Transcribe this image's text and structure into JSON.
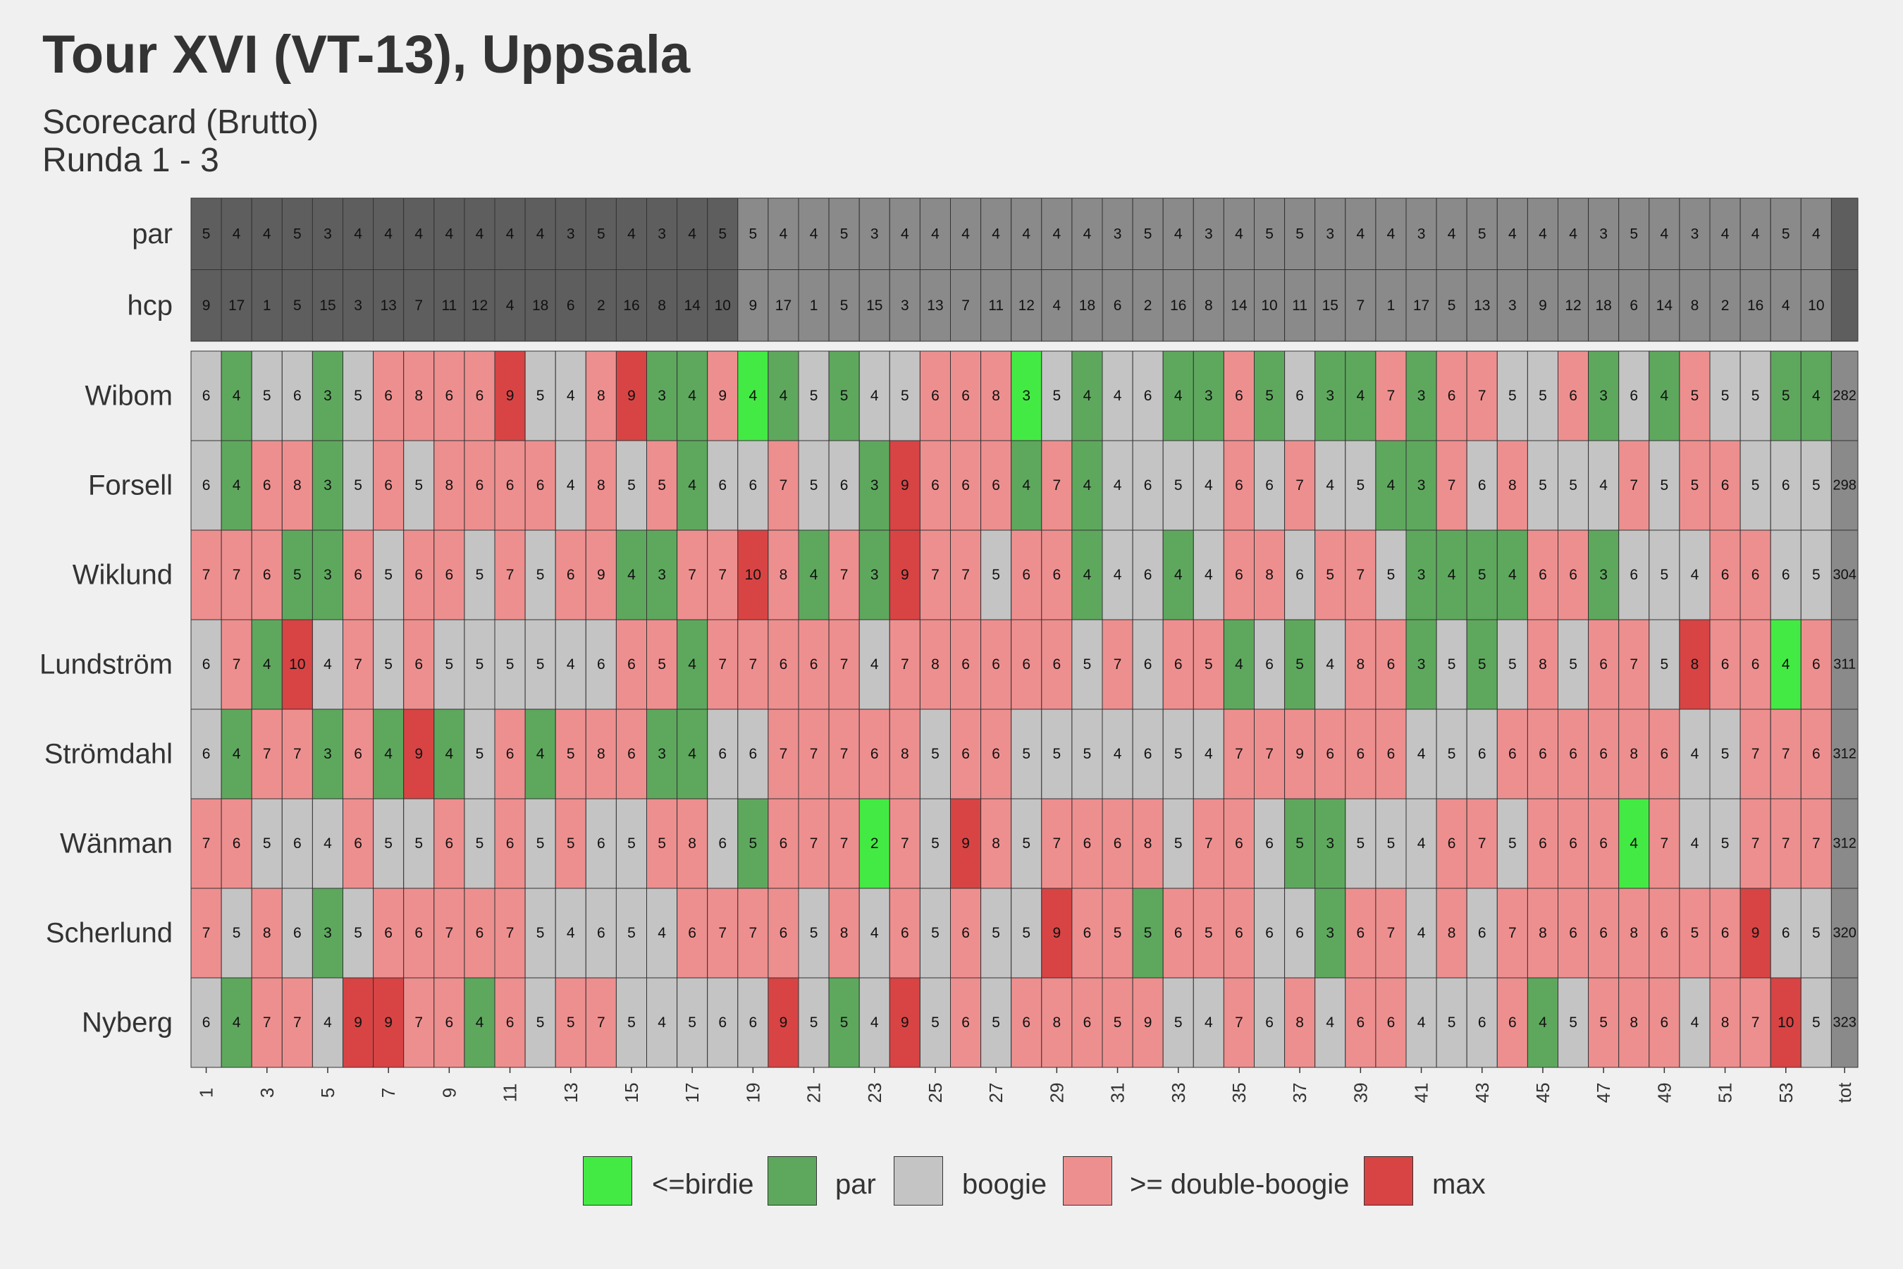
{
  "title": "Tour XVI (VT-13), Uppsala",
  "subtitle_line1": "Scorecard (Brutto)",
  "subtitle_line2": "Runda 1 - 3",
  "colors": {
    "birdie": "#44ea44",
    "par": "#5ea85e",
    "boogie": "#c4c4c4",
    "double": "#ee8f8f",
    "max": "#d84444",
    "header_dark": "#5e5e5e",
    "header_light": "#8a8a8a",
    "total": "#8a8a8a"
  },
  "legend": [
    {
      "key": "birdie",
      "label": "<=birdie"
    },
    {
      "key": "par",
      "label": "par"
    },
    {
      "key": "boogie",
      "label": "boogie"
    },
    {
      "key": "double",
      "label": ">= double-boogie"
    },
    {
      "key": "max",
      "label": "max"
    }
  ],
  "chart_data": {
    "type": "heatmap",
    "holes": [
      1,
      2,
      3,
      4,
      5,
      6,
      7,
      8,
      9,
      10,
      11,
      12,
      13,
      14,
      15,
      16,
      17,
      18,
      19,
      20,
      21,
      22,
      23,
      24,
      25,
      26,
      27,
      28,
      29,
      30,
      31,
      32,
      33,
      34,
      35,
      36,
      37,
      38,
      39,
      40,
      41,
      42,
      43,
      44,
      45,
      46,
      47,
      48,
      49,
      50,
      51,
      52,
      53,
      54
    ],
    "x_tick_labels": [
      "1",
      "3",
      "5",
      "7",
      "9",
      "11",
      "13",
      "15",
      "17",
      "19",
      "21",
      "23",
      "25",
      "27",
      "29",
      "31",
      "33",
      "35",
      "37",
      "39",
      "41",
      "43",
      "45",
      "47",
      "49",
      "51",
      "53",
      "tot"
    ],
    "header_rows": [
      {
        "label": "par",
        "values": [
          5,
          4,
          4,
          5,
          3,
          4,
          4,
          4,
          4,
          4,
          4,
          4,
          3,
          5,
          4,
          3,
          4,
          5,
          5,
          4,
          4,
          5,
          3,
          4,
          4,
          4,
          4,
          4,
          4,
          4,
          3,
          5,
          4,
          3,
          4,
          5,
          5,
          3,
          4,
          4,
          3,
          4,
          5,
          4,
          4,
          4,
          3,
          5,
          4,
          3,
          4,
          4,
          5,
          4
        ]
      },
      {
        "label": "hcp",
        "values": [
          9,
          17,
          1,
          5,
          15,
          3,
          13,
          7,
          11,
          12,
          4,
          18,
          6,
          2,
          16,
          8,
          14,
          10,
          9,
          17,
          1,
          5,
          15,
          3,
          13,
          7,
          11,
          12,
          4,
          18,
          6,
          2,
          16,
          8,
          14,
          10,
          11,
          15,
          7,
          1,
          17,
          5,
          13,
          3,
          9,
          12,
          18,
          6,
          14,
          8,
          2,
          16,
          4,
          10
        ]
      }
    ],
    "players": [
      {
        "name": "Wibom",
        "total": 282,
        "scores": [
          6,
          4,
          5,
          6,
          3,
          5,
          6,
          8,
          6,
          6,
          9,
          5,
          4,
          8,
          9,
          3,
          4,
          9,
          4,
          4,
          5,
          5,
          4,
          5,
          6,
          6,
          8,
          3,
          5,
          4,
          4,
          6,
          4,
          3,
          6,
          5,
          6,
          3,
          4,
          7,
          3,
          6,
          7,
          5,
          5,
          6,
          3,
          6,
          4,
          5,
          5,
          5,
          5,
          4
        ],
        "cats": [
          2,
          1,
          2,
          2,
          1,
          2,
          3,
          3,
          3,
          3,
          4,
          2,
          2,
          3,
          4,
          1,
          1,
          3,
          0,
          1,
          2,
          1,
          2,
          2,
          3,
          3,
          3,
          0,
          2,
          1,
          2,
          2,
          1,
          1,
          3,
          1,
          2,
          1,
          1,
          3,
          1,
          3,
          3,
          2,
          2,
          3,
          1,
          2,
          1,
          3,
          2,
          2,
          1,
          1
        ]
      },
      {
        "name": "Forsell",
        "total": 298,
        "scores": [
          6,
          4,
          6,
          8,
          3,
          5,
          6,
          5,
          8,
          6,
          6,
          6,
          4,
          8,
          5,
          5,
          4,
          6,
          6,
          7,
          5,
          6,
          3,
          9,
          6,
          6,
          6,
          4,
          7,
          4,
          4,
          6,
          5,
          4,
          6,
          6,
          7,
          4,
          5,
          4,
          3,
          7,
          6,
          8,
          5,
          5,
          4,
          7,
          5,
          5,
          6,
          5,
          6,
          5
        ],
        "cats": [
          2,
          1,
          3,
          3,
          1,
          2,
          3,
          2,
          3,
          3,
          3,
          3,
          2,
          3,
          2,
          3,
          1,
          2,
          2,
          3,
          2,
          2,
          1,
          4,
          3,
          3,
          3,
          1,
          3,
          1,
          2,
          2,
          2,
          2,
          3,
          2,
          3,
          2,
          2,
          1,
          1,
          3,
          2,
          3,
          2,
          2,
          2,
          3,
          2,
          3,
          3,
          2,
          2,
          2
        ]
      },
      {
        "name": "Wiklund",
        "total": 304,
        "scores": [
          7,
          7,
          6,
          5,
          3,
          6,
          5,
          6,
          6,
          5,
          7,
          5,
          6,
          9,
          4,
          3,
          7,
          7,
          10,
          8,
          4,
          7,
          3,
          9,
          7,
          7,
          5,
          6,
          6,
          4,
          4,
          6,
          4,
          4,
          6,
          8,
          6,
          5,
          7,
          5,
          3,
          4,
          5,
          4,
          6,
          6,
          3,
          6,
          5,
          4,
          6,
          6,
          6,
          5
        ],
        "cats": [
          3,
          3,
          3,
          1,
          1,
          3,
          2,
          3,
          3,
          2,
          3,
          2,
          3,
          3,
          1,
          1,
          3,
          3,
          4,
          3,
          1,
          3,
          1,
          4,
          3,
          3,
          2,
          3,
          3,
          1,
          2,
          2,
          1,
          2,
          3,
          3,
          2,
          3,
          3,
          2,
          1,
          1,
          1,
          1,
          3,
          3,
          1,
          2,
          2,
          2,
          3,
          3,
          2,
          2
        ]
      },
      {
        "name": "Lundström",
        "total": 311,
        "scores": [
          6,
          7,
          4,
          10,
          4,
          7,
          5,
          6,
          5,
          5,
          5,
          5,
          4,
          6,
          6,
          5,
          4,
          7,
          7,
          6,
          6,
          7,
          4,
          7,
          8,
          6,
          6,
          6,
          6,
          5,
          7,
          6,
          6,
          5,
          4,
          6,
          5,
          4,
          8,
          6,
          3,
          5,
          5,
          5,
          8,
          5,
          6,
          7,
          5,
          8,
          6,
          6,
          4,
          6
        ],
        "cats": [
          2,
          3,
          1,
          4,
          2,
          3,
          2,
          3,
          2,
          2,
          2,
          2,
          2,
          2,
          3,
          3,
          1,
          3,
          3,
          3,
          3,
          3,
          2,
          3,
          3,
          3,
          3,
          3,
          3,
          2,
          3,
          2,
          3,
          3,
          1,
          2,
          1,
          2,
          3,
          3,
          1,
          2,
          1,
          2,
          3,
          2,
          3,
          3,
          2,
          4,
          3,
          3,
          0,
          3
        ]
      },
      {
        "name": "Strömdahl",
        "total": 312,
        "scores": [
          6,
          4,
          7,
          7,
          3,
          6,
          4,
          9,
          4,
          5,
          6,
          4,
          5,
          8,
          6,
          3,
          4,
          6,
          6,
          7,
          7,
          7,
          6,
          8,
          5,
          6,
          6,
          5,
          5,
          5,
          4,
          6,
          5,
          4,
          7,
          7,
          9,
          6,
          6,
          6,
          4,
          5,
          6,
          6,
          6,
          6,
          6,
          8,
          6,
          4,
          5,
          7,
          7,
          6
        ],
        "cats": [
          2,
          1,
          3,
          3,
          1,
          3,
          1,
          4,
          1,
          2,
          3,
          1,
          3,
          3,
          3,
          1,
          1,
          2,
          2,
          3,
          3,
          3,
          3,
          3,
          2,
          3,
          3,
          2,
          2,
          2,
          2,
          2,
          2,
          2,
          3,
          3,
          3,
          3,
          3,
          3,
          2,
          2,
          2,
          3,
          3,
          3,
          3,
          3,
          3,
          2,
          2,
          3,
          3,
          3
        ]
      },
      {
        "name": "Wänman",
        "total": 312,
        "scores": [
          7,
          6,
          5,
          6,
          4,
          6,
          5,
          5,
          6,
          5,
          6,
          5,
          5,
          6,
          5,
          5,
          8,
          6,
          5,
          6,
          7,
          7,
          2,
          7,
          5,
          9,
          8,
          5,
          7,
          6,
          6,
          8,
          5,
          7,
          6,
          6,
          5,
          3,
          5,
          5,
          4,
          6,
          7,
          5,
          6,
          6,
          6,
          4,
          7,
          4,
          5,
          7,
          7,
          7
        ],
        "cats": [
          3,
          3,
          2,
          2,
          2,
          3,
          2,
          2,
          3,
          2,
          3,
          2,
          3,
          2,
          2,
          3,
          3,
          2,
          1,
          3,
          3,
          3,
          0,
          3,
          2,
          4,
          3,
          2,
          3,
          3,
          3,
          3,
          2,
          3,
          3,
          2,
          1,
          1,
          2,
          2,
          2,
          3,
          3,
          2,
          3,
          3,
          3,
          0,
          3,
          2,
          2,
          3,
          3,
          3
        ]
      },
      {
        "name": "Scherlund",
        "total": 320,
        "scores": [
          7,
          5,
          8,
          6,
          3,
          5,
          6,
          6,
          7,
          6,
          7,
          5,
          4,
          6,
          5,
          4,
          6,
          7,
          7,
          6,
          5,
          8,
          4,
          6,
          5,
          6,
          5,
          5,
          9,
          6,
          5,
          5,
          6,
          5,
          6,
          6,
          6,
          3,
          6,
          7,
          4,
          8,
          6,
          7,
          8,
          6,
          6,
          8,
          6,
          5,
          6,
          9,
          6,
          5
        ],
        "cats": [
          3,
          2,
          3,
          2,
          1,
          2,
          3,
          3,
          3,
          3,
          3,
          2,
          2,
          2,
          2,
          2,
          3,
          3,
          3,
          3,
          2,
          3,
          2,
          3,
          2,
          3,
          2,
          2,
          4,
          3,
          3,
          1,
          3,
          3,
          3,
          2,
          2,
          1,
          3,
          3,
          2,
          3,
          2,
          3,
          3,
          3,
          3,
          3,
          3,
          3,
          3,
          4,
          2,
          2
        ]
      },
      {
        "name": "Nyberg",
        "total": 323,
        "scores": [
          6,
          4,
          7,
          7,
          4,
          9,
          9,
          7,
          6,
          4,
          6,
          5,
          5,
          7,
          5,
          4,
          5,
          6,
          6,
          9,
          5,
          5,
          4,
          9,
          5,
          6,
          5,
          6,
          8,
          6,
          5,
          9,
          5,
          4,
          7,
          6,
          8,
          4,
          6,
          6,
          4,
          5,
          6,
          6,
          4,
          5,
          5,
          8,
          6,
          4,
          8,
          7,
          10,
          5
        ],
        "cats": [
          2,
          1,
          3,
          3,
          2,
          4,
          4,
          3,
          3,
          1,
          3,
          2,
          3,
          3,
          2,
          2,
          2,
          2,
          2,
          4,
          2,
          1,
          2,
          4,
          2,
          3,
          2,
          3,
          3,
          3,
          3,
          3,
          2,
          2,
          3,
          2,
          3,
          2,
          3,
          3,
          2,
          2,
          2,
          3,
          1,
          2,
          3,
          3,
          3,
          2,
          3,
          3,
          4,
          2
        ]
      }
    ]
  }
}
